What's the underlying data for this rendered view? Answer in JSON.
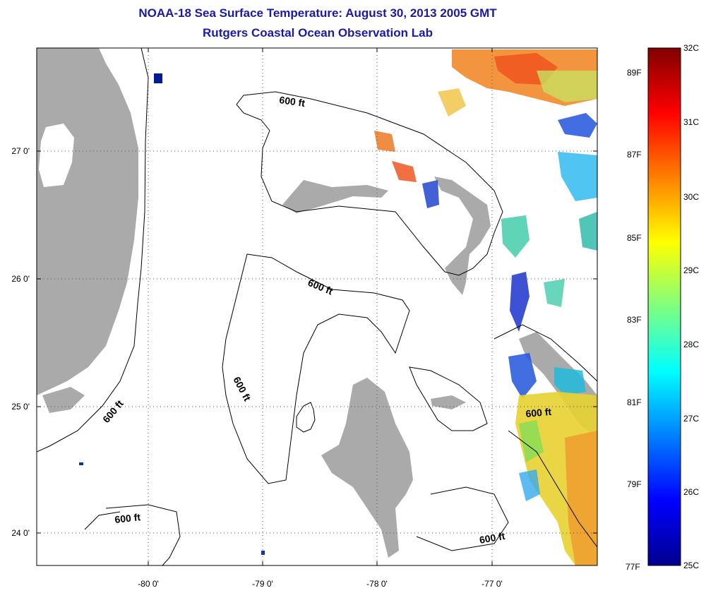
{
  "title": {
    "line1": "NOAA-18 Sea Surface Temperature:  August 30, 2013 2005 GMT",
    "line2": "Rutgers Coastal Ocean Observation Lab"
  },
  "axes": {
    "y_labels": [
      "27 0'",
      "26 0'",
      "25 0'",
      "24 0'"
    ],
    "x_labels": [
      "-80 0'",
      "-79 0'",
      "-78 0'",
      "-77 0'"
    ]
  },
  "contour_labels": [
    "600 ft",
    "600 ft",
    "600 ft",
    "600 ft",
    "600 ft",
    "600 ft"
  ],
  "colorbar": {
    "celsius": [
      "32C",
      "31C",
      "30C",
      "29C",
      "28C",
      "27C",
      "26C",
      "25C"
    ],
    "fahrenheit": [
      "89F",
      "87F",
      "85F",
      "83F",
      "81F",
      "79F",
      "77F"
    ]
  },
  "colors": {
    "title": "#1a1aa6",
    "land": "#aaaaaa",
    "ocean": "#ffffff"
  }
}
